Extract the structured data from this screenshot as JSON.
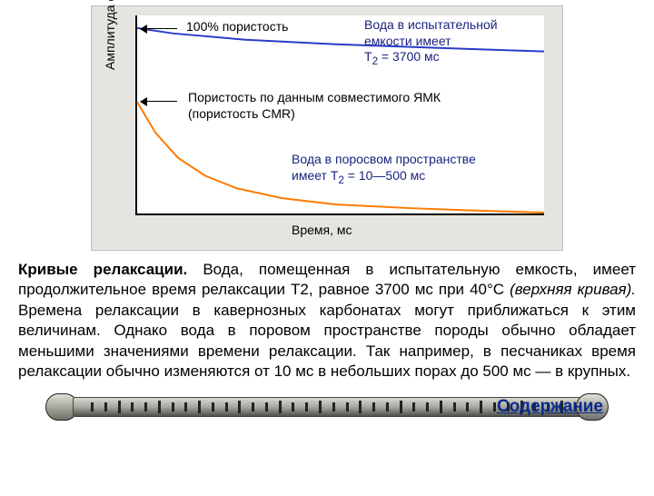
{
  "chart": {
    "bg_color": "#e6e4e0",
    "plot_bg": "#ffffff",
    "y_axis_label": "Амплитуда сигнала",
    "x_axis_label": "Время, мс",
    "axis_fontsize": 14,
    "blue_curve": {
      "color": "#2a3cc8",
      "width": 2,
      "points": [
        [
          0,
          14
        ],
        [
          40,
          20
        ],
        [
          120,
          27
        ],
        [
          220,
          32
        ],
        [
          330,
          36
        ],
        [
          450,
          40
        ]
      ]
    },
    "orange_curve": {
      "color": "#ff7a00",
      "width": 2,
      "points": [
        [
          0,
          96
        ],
        [
          20,
          130
        ],
        [
          45,
          158
        ],
        [
          75,
          178
        ],
        [
          110,
          192
        ],
        [
          160,
          203
        ],
        [
          220,
          210
        ],
        [
          300,
          214
        ],
        [
          380,
          217
        ],
        [
          450,
          219
        ]
      ]
    },
    "annot_100": "100% пористость",
    "annot_blue1_l1": "Вода в испытательной",
    "annot_blue1_l2": "емкости имеет",
    "annot_blue1_l3": "T",
    "annot_blue1_l3b": " = 3700 мс",
    "annot_cmr_l1": "Пористость по данным совместимого ЯМК",
    "annot_cmr_l2": "(пористость CMR)",
    "annot_blue2_l1": "Вода в поросвом пространстве",
    "annot_blue2_l2": "имеет Т",
    "annot_blue2_l2b": " = 10—500 мс",
    "sub2": "2"
  },
  "caption": {
    "bold_lead": "Кривые релаксации.",
    "text1": " Вода, помещенная в испытательную емкость, имеет продолжительное время релаксации Т2, равное 3700 мс при 40°С ",
    "italic": "(верхняя кривая).",
    "text2": " Времена релаксации в кавернозных карбонатах могут приближаться к этим величинам. Однако вода в поровом пространстве породы обычно обладает меньшими значениями времени релаксации. Так например, в песчаниках время релаксации обычно изменяются от 10 мс в небольших порах до 500 мс — в крупных."
  },
  "toc_link": "Содержание"
}
